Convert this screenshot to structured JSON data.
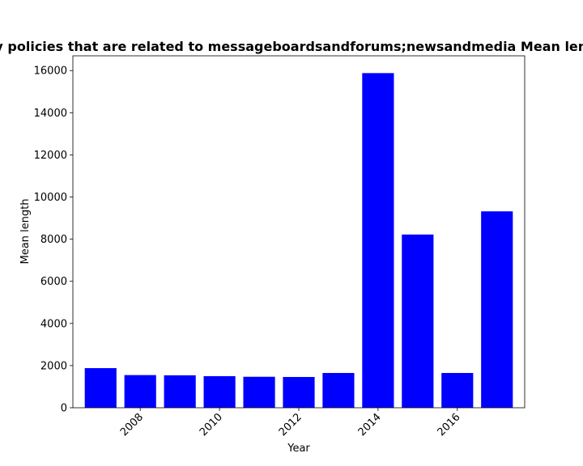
{
  "chart_data": {
    "type": "bar",
    "title": "Mean length of privacy policies that are related to messageboardsandforums;newsandmedia Mean length in privacy policies",
    "xlabel": "Year",
    "ylabel": "Mean length",
    "x": [
      2007,
      2008,
      2009,
      2010,
      2011,
      2012,
      2013,
      2014,
      2015,
      2016,
      2017
    ],
    "values": [
      1880,
      1550,
      1540,
      1500,
      1470,
      1460,
      1650,
      15880,
      8220,
      1650,
      9320
    ],
    "xticks": [
      "2008",
      "2010",
      "2012",
      "2014",
      "2016"
    ],
    "yticks": [
      "0",
      "2000",
      "4000",
      "6000",
      "8000",
      "10000",
      "12000",
      "14000",
      "16000"
    ],
    "ylim": [
      0,
      16700
    ],
    "xlim": [
      2006.3,
      2017.7
    ],
    "bar_color": "#0000ff",
    "grid": false,
    "legend": false
  }
}
